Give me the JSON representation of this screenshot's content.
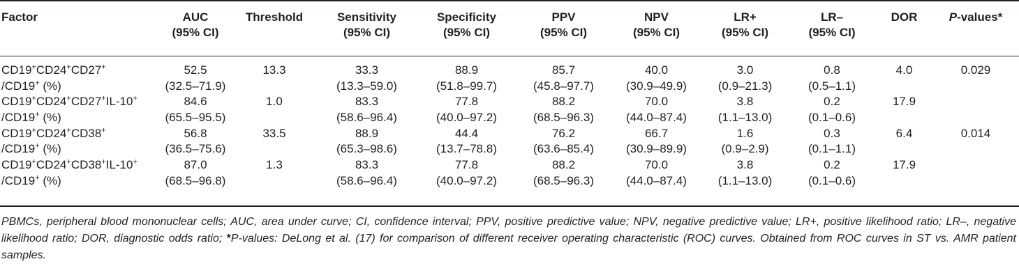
{
  "columns": [
    {
      "line1": "Factor",
      "line2": ""
    },
    {
      "line1": "AUC",
      "line2": "(95% CI)"
    },
    {
      "line1": "Threshold",
      "line2": ""
    },
    {
      "line1": "Sensitivity",
      "line2": "(95% CI)"
    },
    {
      "line1": "Specificity",
      "line2": "(95% CI)"
    },
    {
      "line1": "PPV",
      "line2": "(95% CI)"
    },
    {
      "line1": "NPV",
      "line2": "(95% CI)"
    },
    {
      "line1": "LR+",
      "line2": "(95% CI)"
    },
    {
      "line1": "LR–",
      "line2": "(95% CI)"
    },
    {
      "line1": "DOR",
      "line2": ""
    },
    {
      "line1": "P",
      "line2": "-values*"
    }
  ],
  "rows": [
    {
      "factor_parts": [
        "CD19",
        "+",
        "CD24",
        "+",
        "CD27",
        "+",
        ""
      ],
      "factor_line2": [
        "/CD19",
        "+",
        " (%)"
      ],
      "auc": "52.5",
      "auc_ci": "(32.5–71.9)",
      "threshold": "13.3",
      "sens": "33.3",
      "sens_ci": "(13.3–59.0)",
      "spec": "88.9",
      "spec_ci": "(51.8–99.7)",
      "ppv": "85.7",
      "ppv_ci": "(45.8–97.7)",
      "npv": "40.0",
      "npv_ci": "(30.9–49.9)",
      "lrp": "3.0",
      "lrp_ci": "(0.9–21.3)",
      "lrn": "0.8",
      "lrn_ci": "(0.5–1.1)",
      "dor": "4.0",
      "p": "0.029"
    },
    {
      "factor_parts": [
        "CD19",
        "+",
        "CD24",
        "+",
        "CD27",
        "+",
        "IL-10",
        "+"
      ],
      "factor_line2": [
        "/CD19",
        "+",
        " (%)"
      ],
      "auc": "84.6",
      "auc_ci": "(65.5–95.5)",
      "threshold": "1.0",
      "sens": "83.3",
      "sens_ci": "(58.6–96.4)",
      "spec": "77.8",
      "spec_ci": "(40.0–97.2)",
      "ppv": "88.2",
      "ppv_ci": "(68.5–96.3)",
      "npv": "70.0",
      "npv_ci": "(44.0–87.4)",
      "lrp": "3.8",
      "lrp_ci": "(1.1–13.0)",
      "lrn": "0.2",
      "lrn_ci": "(0.1–0.6)",
      "dor": "17.9",
      "p": ""
    },
    {
      "factor_parts": [
        "CD19",
        "+",
        "CD24",
        "+",
        "CD38",
        "+",
        ""
      ],
      "factor_line2": [
        "/CD19",
        "+",
        " (%)"
      ],
      "auc": "56.8",
      "auc_ci": "(36.5–75.6)",
      "threshold": "33.5",
      "sens": "88.9",
      "sens_ci": "(65.3–98.6)",
      "spec": "44.4",
      "spec_ci": "(13.7–78.8)",
      "ppv": "76.2",
      "ppv_ci": "(63.6–85.4)",
      "npv": "66.7",
      "npv_ci": "(30.9–89.9)",
      "lrp": "1.6",
      "lrp_ci": "(0.9–2.9)",
      "lrn": "0.3",
      "lrn_ci": "(0.1–1.1)",
      "dor": "6.4",
      "p": "0.014"
    },
    {
      "factor_parts": [
        "CD19",
        "+",
        "CD24",
        "+",
        "CD38",
        "+",
        "IL-10",
        "+"
      ],
      "factor_line2": [
        "/CD19",
        "+",
        " (%)"
      ],
      "auc": "87.0",
      "auc_ci": "(68.5–96.8)",
      "threshold": "1.3",
      "sens": "83.3",
      "sens_ci": "(58.6–96.4)",
      "spec": "77.8",
      "spec_ci": "(40.0–97.2)",
      "ppv": "88.2",
      "ppv_ci": "(68.5–96.3)",
      "npv": "70.0",
      "npv_ci": "(44.0–87.4)",
      "lrp": "3.8",
      "lrp_ci": "(1.1–13.0)",
      "lrn": "0.2",
      "lrn_ci": "(0.1–0.6)",
      "dor": "17.9",
      "p": ""
    }
  ],
  "footnote": {
    "part1": "PBMCs, peripheral blood mononuclear cells; AUC, area under curve; CI, confidence interval; PPV, positive predictive value; NPV, negative predictive value; LR+, positive likelihood ratio; LR–, negative likelihood ratio; DOR, diagnostic odds ratio; ",
    "star": "*",
    "part2": "P-values: DeLong et al. (17) for comparison of different receiver operating characteristic (ROC) curves. Obtained from ROC curves in ST vs. AMR patient samples."
  }
}
